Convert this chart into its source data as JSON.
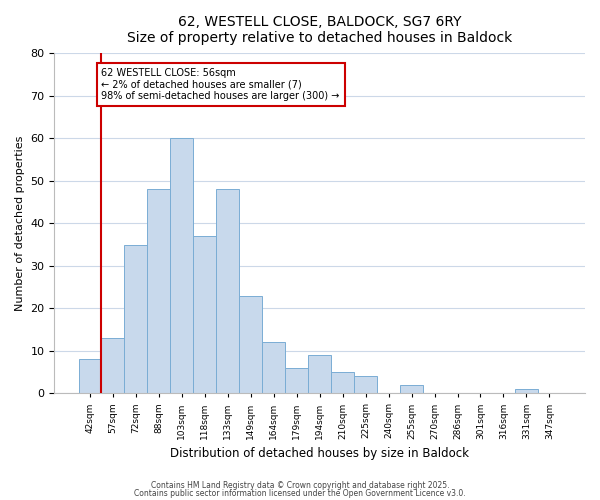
{
  "title": "62, WESTELL CLOSE, BALDOCK, SG7 6RY",
  "subtitle": "Size of property relative to detached houses in Baldock",
  "xlabel": "Distribution of detached houses by size in Baldock",
  "ylabel": "Number of detached properties",
  "bar_labels": [
    "42sqm",
    "57sqm",
    "72sqm",
    "88sqm",
    "103sqm",
    "118sqm",
    "133sqm",
    "149sqm",
    "164sqm",
    "179sqm",
    "194sqm",
    "210sqm",
    "225sqm",
    "240sqm",
    "255sqm",
    "270sqm",
    "286sqm",
    "301sqm",
    "316sqm",
    "331sqm",
    "347sqm"
  ],
  "bar_values": [
    8,
    13,
    35,
    48,
    60,
    37,
    48,
    23,
    12,
    6,
    9,
    5,
    4,
    0,
    2,
    0,
    0,
    0,
    0,
    1,
    0
  ],
  "bar_color": "#c8d9ec",
  "bar_edge_color": "#7aadd4",
  "highlight_bar_index": 1,
  "highlight_color": "#cc0000",
  "ylim": [
    0,
    80
  ],
  "yticks": [
    0,
    10,
    20,
    30,
    40,
    50,
    60,
    70,
    80
  ],
  "annotation_title": "62 WESTELL CLOSE: 56sqm",
  "annotation_line1": "← 2% of detached houses are smaller (7)",
  "annotation_line2": "98% of semi-detached houses are larger (300) →",
  "footer1": "Contains HM Land Registry data © Crown copyright and database right 2025.",
  "footer2": "Contains public sector information licensed under the Open Government Licence v3.0.",
  "background_color": "#ffffff",
  "grid_color": "#ccd8e8",
  "title_fontsize": 10,
  "subtitle_fontsize": 9
}
